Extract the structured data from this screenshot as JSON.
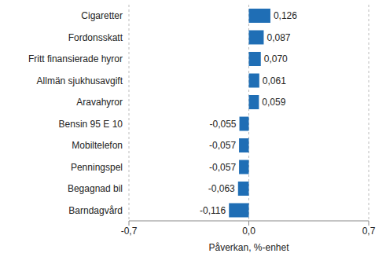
{
  "chart_data": {
    "type": "bar",
    "orientation": "horizontal",
    "categories": [
      "Cigaretter",
      "Fordonsskatt",
      "Fritt finansierade hyror",
      "Allmän sjukhusavgift",
      "Aravahyror",
      "Bensin 95 E 10",
      "Mobiltelefon",
      "Penningspel",
      "Begagnad bil",
      "Barndagvård"
    ],
    "values": [
      0.126,
      0.087,
      0.07,
      0.061,
      0.059,
      -0.055,
      -0.057,
      -0.057,
      -0.063,
      -0.116
    ],
    "value_labels": [
      "0,126",
      "0,087",
      "0,070",
      "0,061",
      "0,059",
      "-0,055",
      "-0,057",
      "-0,057",
      "-0,063",
      "-0,116"
    ],
    "data_labels": true,
    "color": "#1f6eb5",
    "xlabel": "Påverkan, %-enhet",
    "xlim": [
      -0.7,
      0.7
    ],
    "xticks": [
      {
        "value": -0.7,
        "label": "-0,7"
      },
      {
        "value": 0,
        "label": "0,0"
      },
      {
        "value": 0.7,
        "label": "0,7"
      }
    ],
    "grid": true
  }
}
